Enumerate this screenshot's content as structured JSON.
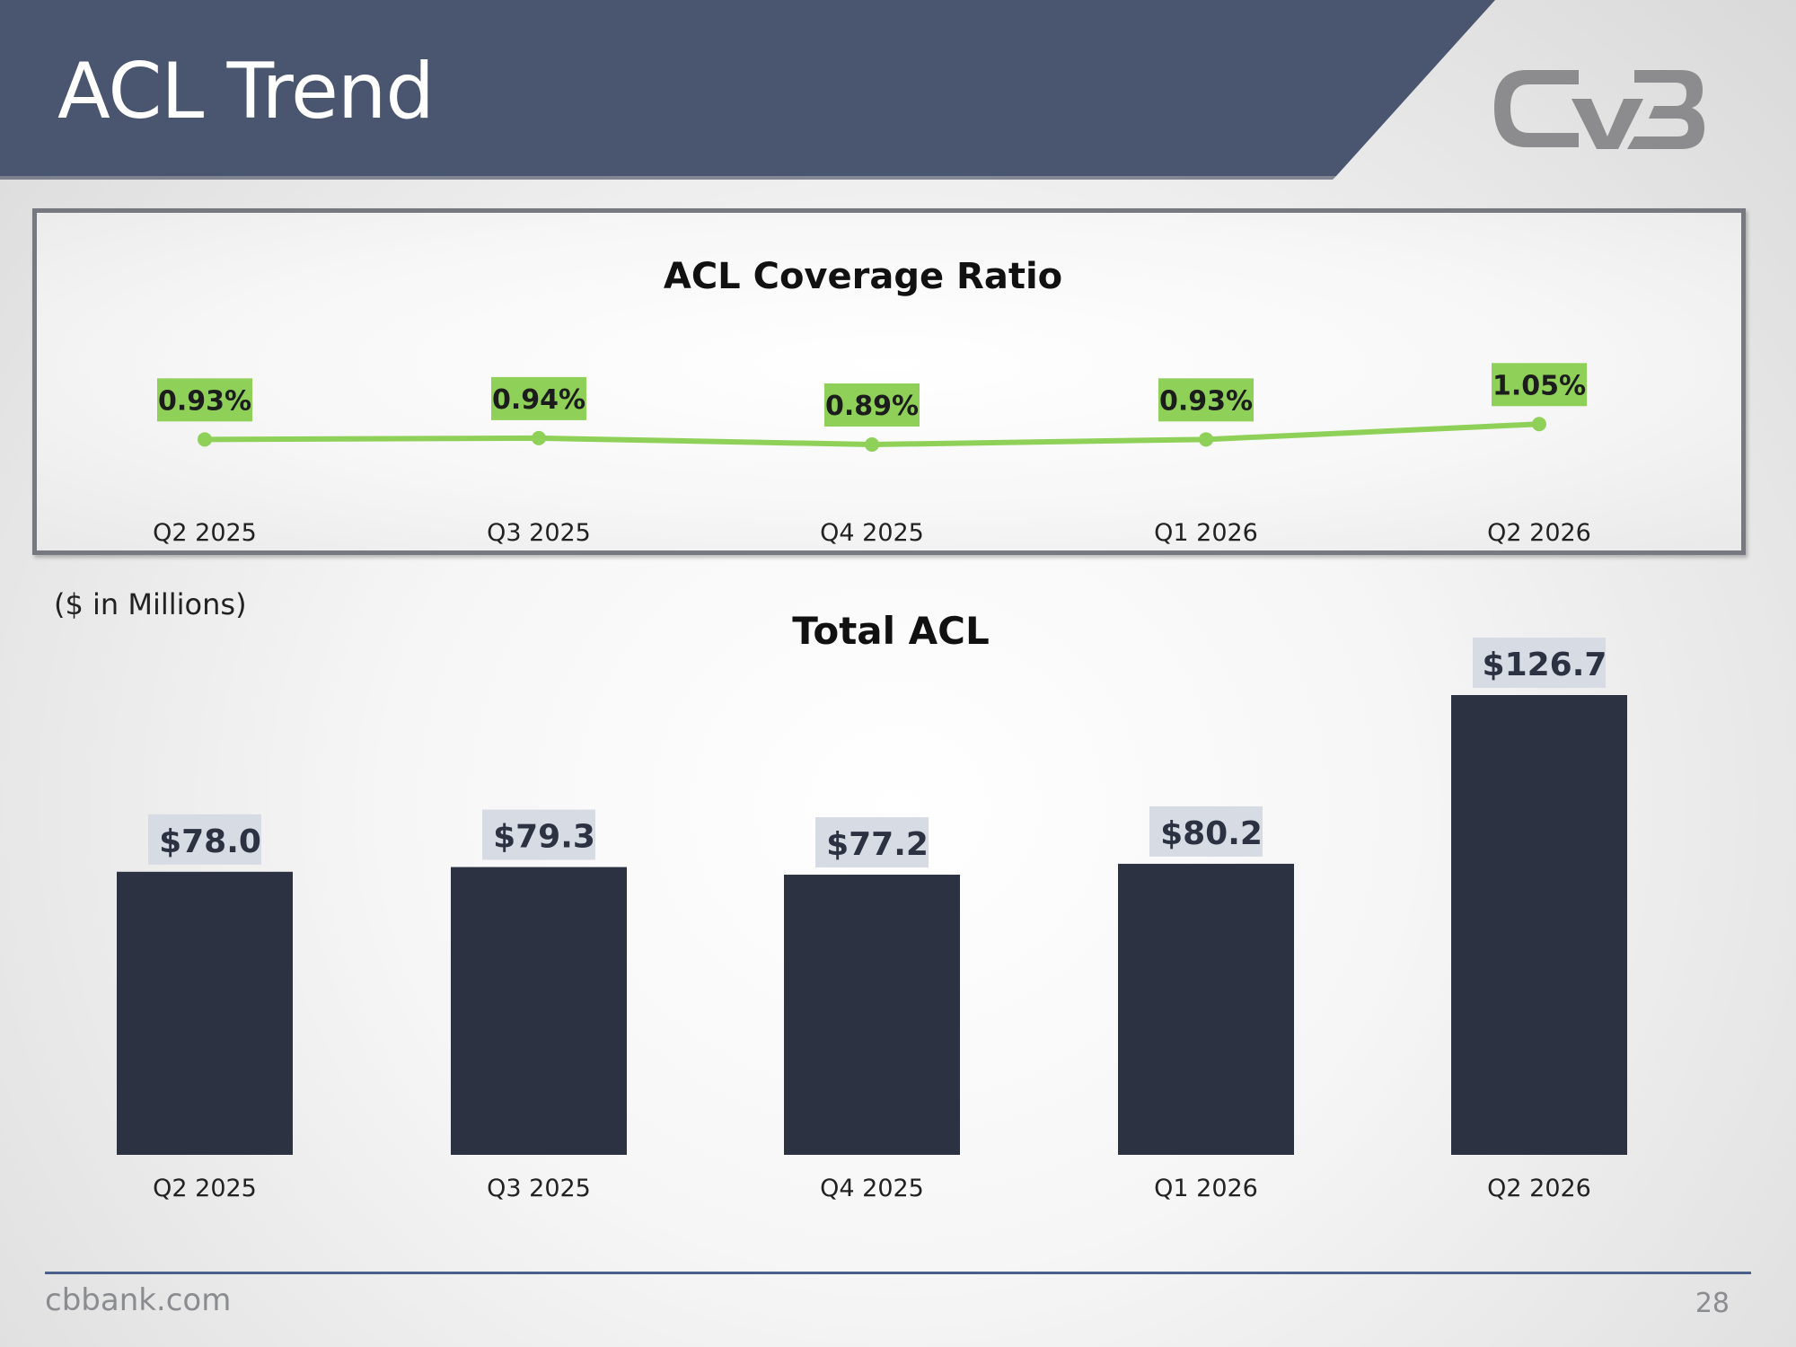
{
  "header": {
    "title": "ACL Trend"
  },
  "brand": {
    "logo": "CVB",
    "band_color": "#4a5570",
    "logo_color": "#8c8c8e"
  },
  "colors": {
    "bar": "#2d3243",
    "line": "#8fd158",
    "label_green": "#8fd158",
    "label_grey": "#d7dbe3"
  },
  "units_note": "($ in Millions)",
  "footer": {
    "site": "cbbank.com",
    "page": "28"
  },
  "chart_data": [
    {
      "type": "line",
      "title": "ACL Coverage Ratio",
      "categories": [
        "Q2 2025",
        "Q3 2025",
        "Q4 2025",
        "Q1 2026",
        "Q2 2026"
      ],
      "values": [
        0.93,
        0.94,
        0.89,
        0.93,
        1.05
      ],
      "labels": [
        "0.93%",
        "0.94%",
        "0.89%",
        "0.93%",
        "1.05%"
      ],
      "grid": false
    },
    {
      "type": "bar",
      "title": "Total ACL",
      "categories": [
        "Q2 2025",
        "Q3 2025",
        "Q4 2025",
        "Q1 2026",
        "Q2 2026"
      ],
      "values": [
        78.0,
        79.3,
        77.2,
        80.2,
        126.7
      ],
      "labels": [
        "$78.0",
        "$79.3",
        "$77.2",
        "$80.2",
        "$126.7"
      ],
      "ylim": [
        0,
        126.7
      ],
      "grid": false
    }
  ]
}
